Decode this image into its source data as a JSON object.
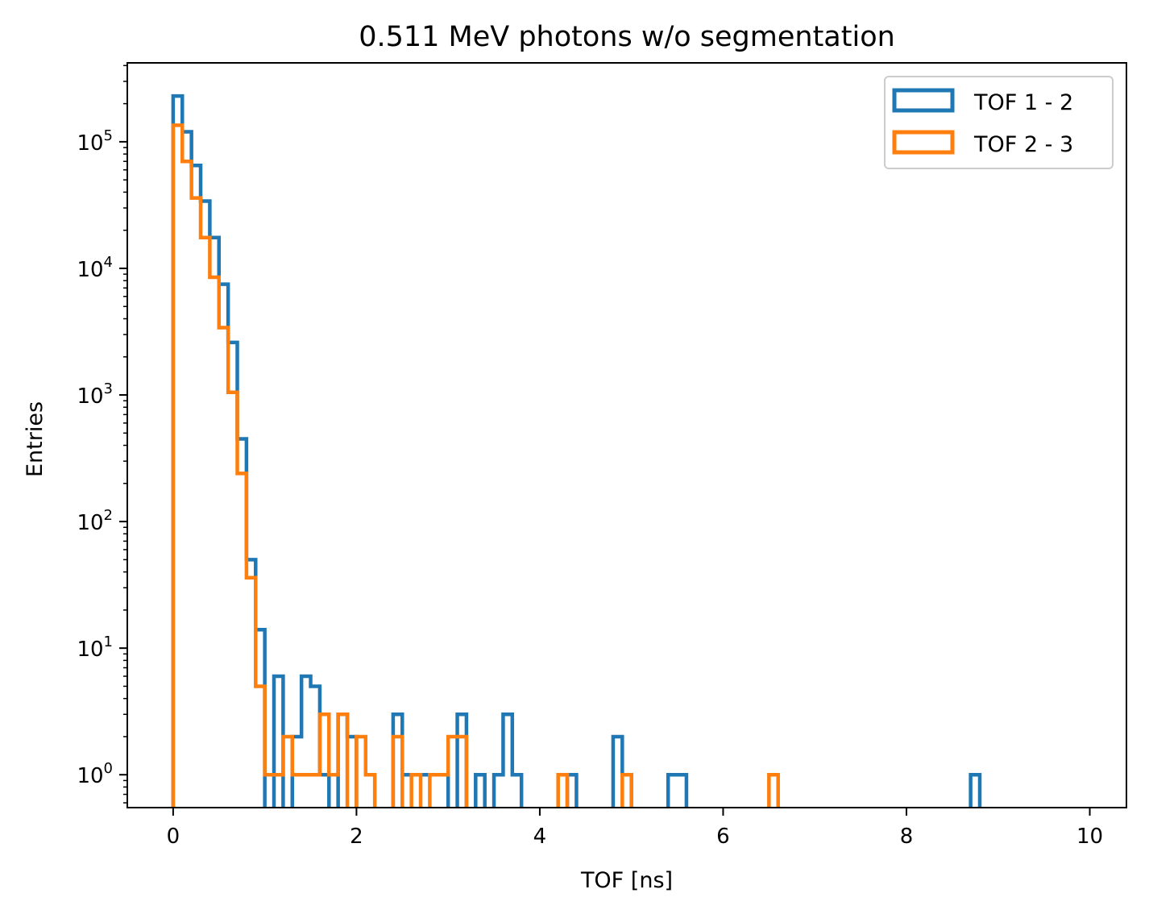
{
  "chart_data": {
    "type": "histogram",
    "title": "0.511 MeV photons w/o segmentation",
    "xlabel": "TOF [ns]",
    "ylabel": "Entries",
    "xlim": [
      -0.5,
      10.4
    ],
    "ylim": [
      0.55,
      420000
    ],
    "yscale": "log",
    "x_ticks": [
      "0",
      "2",
      "4",
      "6",
      "8",
      "10"
    ],
    "x_tick_values": [
      0,
      2,
      4,
      6,
      8,
      10
    ],
    "y_ticks": [
      {
        "base": "10",
        "exp": "0"
      },
      {
        "base": "10",
        "exp": "1"
      },
      {
        "base": "10",
        "exp": "2"
      },
      {
        "base": "10",
        "exp": "3"
      },
      {
        "base": "10",
        "exp": "4"
      },
      {
        "base": "10",
        "exp": "5"
      }
    ],
    "y_tick_values": [
      1,
      10,
      100,
      1000,
      10000,
      100000
    ],
    "bin_edges": [
      0.0,
      0.1,
      0.2,
      0.3,
      0.4,
      0.5,
      0.6,
      0.7,
      0.8,
      0.9,
      1.0,
      1.1,
      1.2,
      1.3,
      1.4,
      1.5,
      1.6,
      1.7,
      1.8,
      1.9,
      2.0,
      2.1,
      2.2,
      2.3,
      2.4,
      2.5,
      2.6,
      2.7,
      2.8,
      2.9,
      3.0,
      3.1,
      3.2,
      3.3,
      3.4,
      3.5,
      3.6,
      3.7,
      3.8,
      3.9,
      4.0,
      4.1,
      4.2,
      4.3,
      4.4,
      4.5,
      4.6,
      4.7,
      4.8,
      4.9,
      5.0,
      5.1,
      5.2,
      5.3,
      5.4,
      5.5,
      5.6,
      5.7,
      5.8,
      5.9,
      6.0,
      6.1,
      6.2,
      6.3,
      6.4,
      6.5,
      6.6,
      6.7,
      6.8,
      6.9,
      7.0,
      7.1,
      7.2,
      7.3,
      7.4,
      7.5,
      7.6,
      7.7,
      7.8,
      7.9,
      8.0,
      8.1,
      8.2,
      8.3,
      8.4,
      8.5,
      8.6,
      8.7,
      8.8,
      8.9,
      9.0,
      9.1,
      9.2,
      9.3,
      9.4,
      9.5,
      9.6,
      9.7,
      9.8,
      9.9,
      10.0
    ],
    "legend_position": "top-right",
    "series": [
      {
        "name": "TOF 1 - 2",
        "color": "#1f77b4",
        "counts": [
          230000,
          120000,
          65000,
          34000,
          17500,
          7500,
          2600,
          450,
          50,
          14,
          0,
          6,
          0,
          2,
          6,
          5,
          1,
          0,
          3,
          2,
          0,
          0,
          0,
          0,
          3,
          1,
          1,
          1,
          1,
          1,
          0,
          3,
          0,
          1,
          0,
          1,
          3,
          1,
          0,
          0,
          0,
          0,
          0,
          1,
          0,
          0,
          0,
          0,
          2,
          1,
          0,
          0,
          0,
          0,
          1,
          1,
          0,
          0,
          0,
          0,
          0,
          0,
          0,
          0,
          0,
          0,
          0,
          0,
          0,
          0,
          0,
          0,
          0,
          0,
          0,
          0,
          0,
          0,
          0,
          0,
          0,
          0,
          0,
          0,
          0,
          0,
          0,
          1,
          0,
          0,
          0,
          0,
          0,
          0,
          0,
          0,
          0,
          0,
          0,
          0
        ]
      },
      {
        "name": "TOF 2 - 3",
        "color": "#ff7f0e",
        "counts": [
          135000,
          70000,
          36000,
          17500,
          8500,
          3400,
          1050,
          240,
          36,
          5,
          1,
          1,
          2,
          1,
          1,
          1,
          3,
          1,
          3,
          0,
          2,
          1,
          0,
          0,
          2,
          0,
          1,
          0,
          1,
          1,
          2,
          2,
          0,
          0,
          0,
          0,
          0,
          0,
          0,
          0,
          0,
          0,
          1,
          0,
          0,
          0,
          0,
          0,
          0,
          1,
          0,
          0,
          0,
          0,
          0,
          0,
          0,
          0,
          0,
          0,
          0,
          0,
          0,
          0,
          0,
          1,
          0,
          0,
          0,
          0,
          0,
          0,
          0,
          0,
          0,
          0,
          0,
          0,
          0,
          0,
          0,
          0,
          0,
          0,
          0,
          0,
          0,
          0,
          0,
          0,
          0,
          0,
          0,
          0,
          0,
          0,
          0,
          0,
          0,
          0
        ]
      }
    ]
  }
}
